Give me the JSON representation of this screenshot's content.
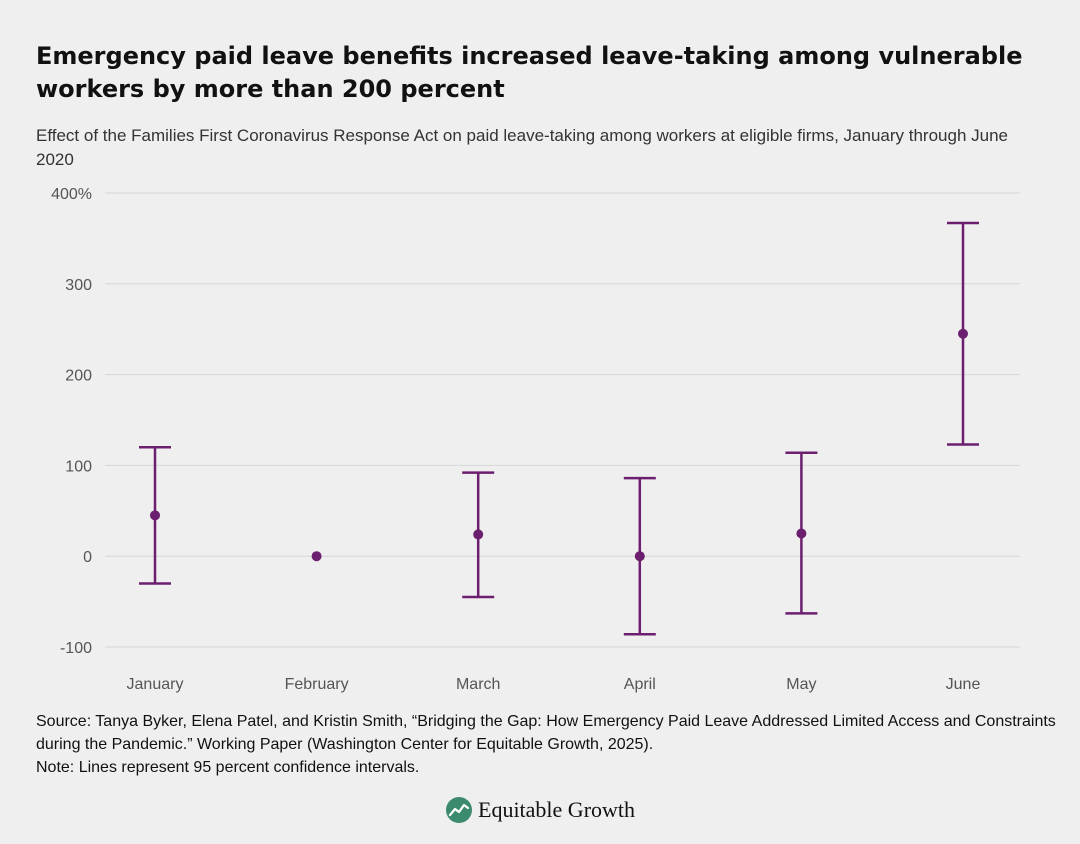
{
  "header": {
    "title": "Emergency paid leave benefits increased leave-taking among vulnerable workers by more than 200 percent",
    "subtitle": "Effect of the Families First Coronavirus Response Act on paid leave-taking among workers at eligible firms, January through June 2020"
  },
  "chart_data": {
    "type": "scatter",
    "subtype": "point-with-error-bars",
    "categories": [
      "January",
      "February",
      "March",
      "April",
      "May",
      "June"
    ],
    "values": [
      45,
      0,
      24,
      0,
      25,
      245
    ],
    "ci_lower": [
      -30,
      null,
      -45,
      -86,
      -63,
      123
    ],
    "ci_upper": [
      120,
      null,
      92,
      86,
      114,
      367
    ],
    "ylim": [
      -100,
      400
    ],
    "yticks": [
      -100,
      0,
      100,
      200,
      300,
      400
    ],
    "ytick_labels": [
      "-100",
      "0",
      "100",
      "200",
      "300",
      "400%"
    ],
    "grid": true,
    "color": "#6b1f6e",
    "xlabel": "",
    "ylabel": ""
  },
  "footer": {
    "source": "Source: Tanya Byker, Elena Patel, and Kristin Smith, “Bridging the Gap: How Emergency Paid Leave Addressed Limited Access and Constraints during the Pandemic.” Working Paper (Washington Center for Equitable Growth, 2025).",
    "note": "Note: Lines represent 95 percent confidence intervals."
  },
  "logo": {
    "text": "Equitable Growth",
    "icon": "equitable-growth-logo-icon",
    "color": "#3d8b6e"
  }
}
